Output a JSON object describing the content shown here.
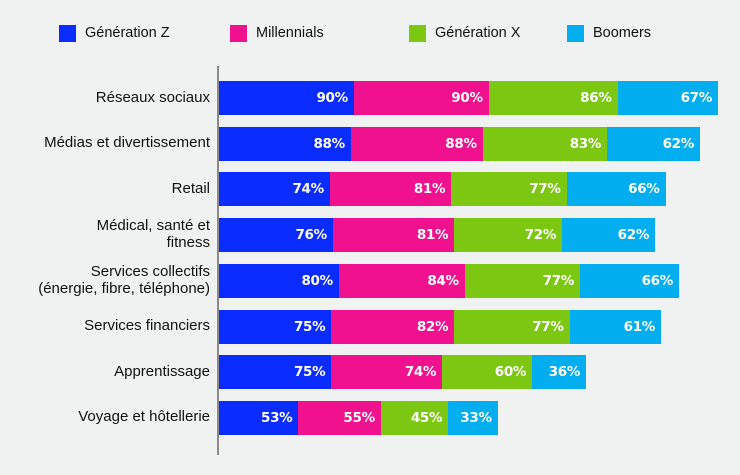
{
  "chart_data": {
    "type": "bar",
    "orientation": "horizontal",
    "stacked": true,
    "title": "",
    "xlabel": "",
    "ylabel": "",
    "legend_position": "top",
    "grid": false,
    "value_format": "percent",
    "categories": [
      "Réseaux sociaux",
      "Médias et divertissement",
      "Retail",
      "Médical, santé et\nfitness",
      "Services collectifs\n(énergie, fibre, téléphone)",
      "Services financiers",
      "Apprentissage",
      "Voyage et hôtellerie"
    ],
    "series": [
      {
        "name": "Génération Z",
        "color": "#0a2cff",
        "values": [
          90,
          88,
          74,
          76,
          80,
          75,
          75,
          53
        ]
      },
      {
        "name": "Millennials",
        "color": "#f0118e",
        "values": [
          90,
          88,
          81,
          81,
          84,
          82,
          74,
          55
        ]
      },
      {
        "name": "Génération X",
        "color": "#7cc711",
        "values": [
          86,
          83,
          77,
          72,
          77,
          77,
          60,
          45
        ]
      },
      {
        "name": "Boomers",
        "color": "#03aef0",
        "values": [
          67,
          62,
          66,
          62,
          66,
          61,
          36,
          33
        ]
      }
    ]
  }
}
